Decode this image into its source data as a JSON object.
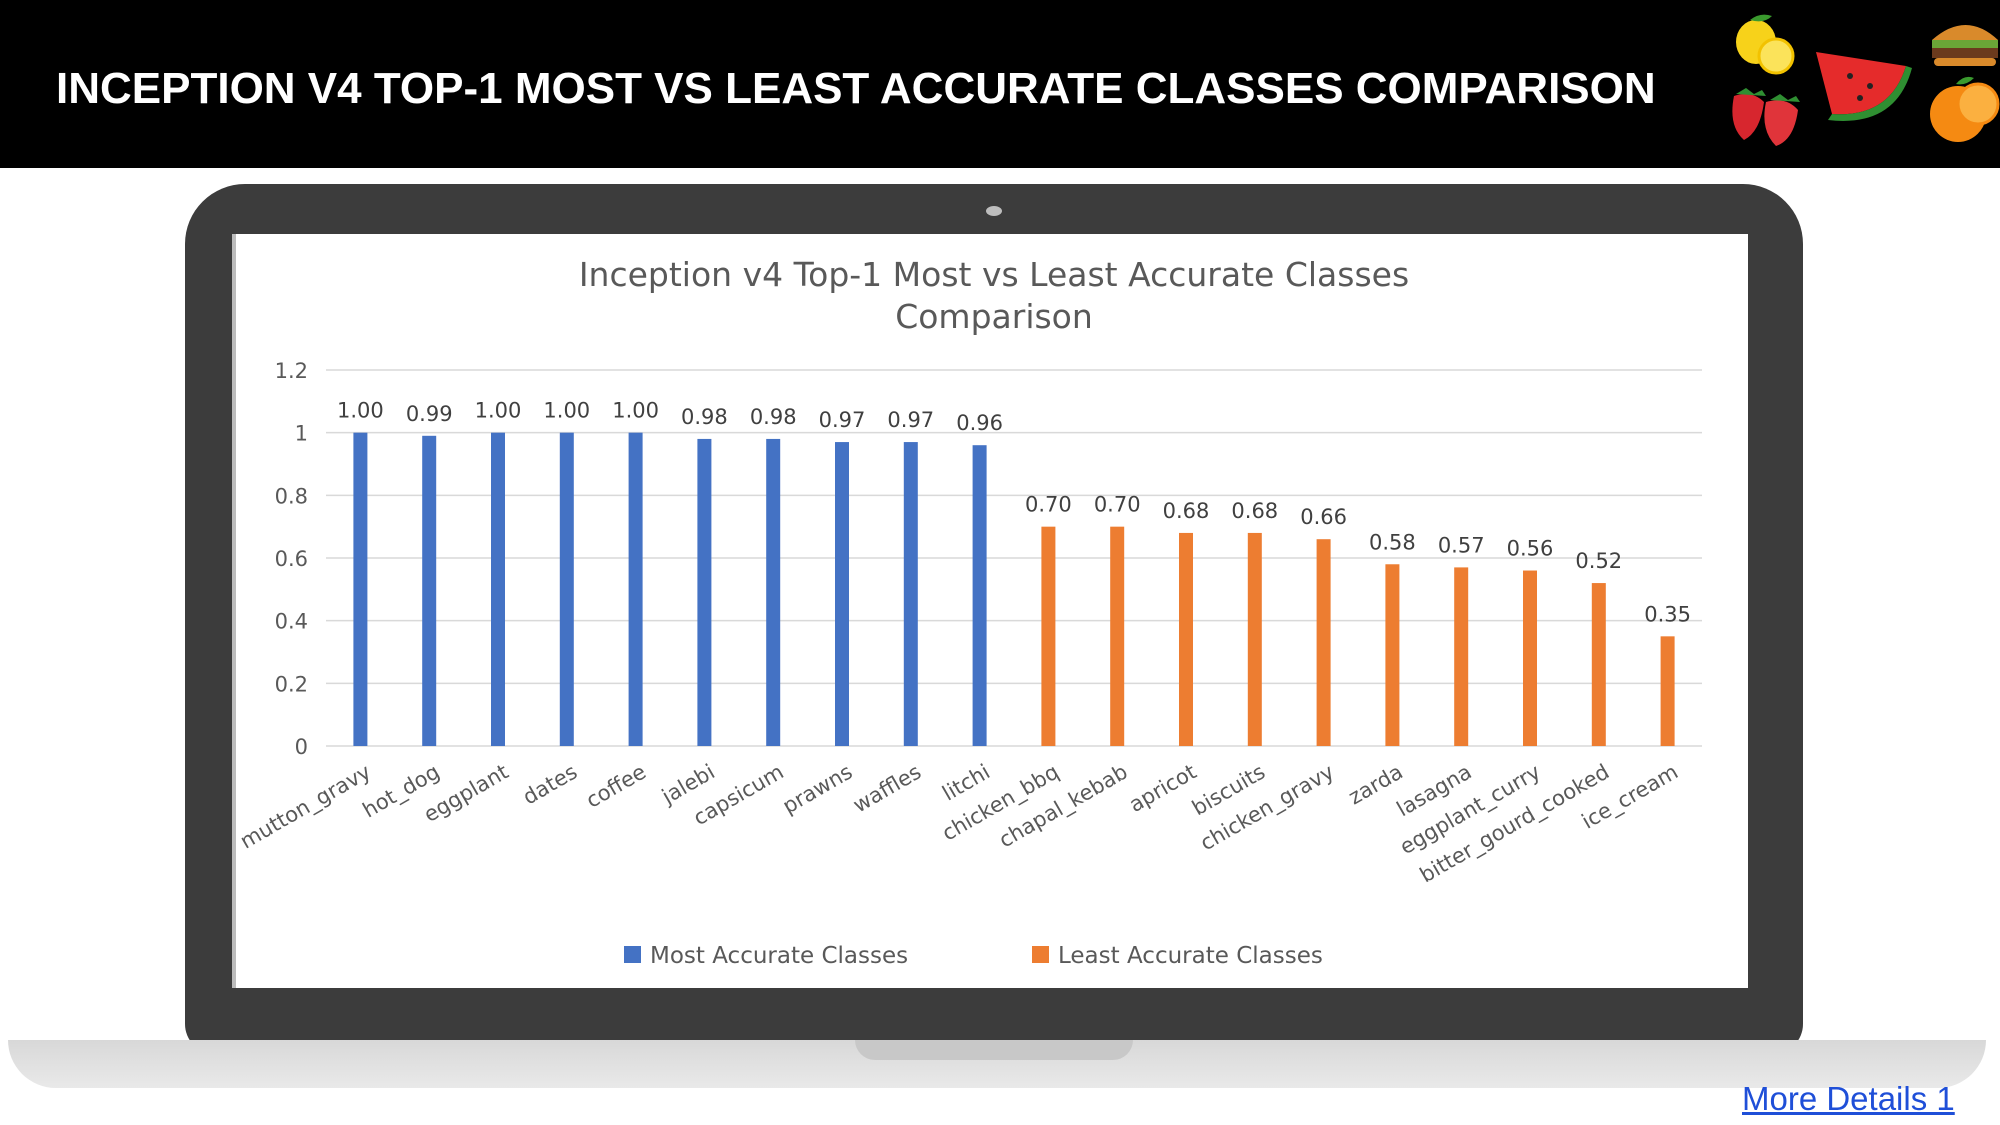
{
  "header": {
    "title": "INCEPTION V4 TOP-1 MOST VS LEAST ACCURATE CLASSES COMPARISON"
  },
  "decorations": {
    "icons": [
      "lemon-icon",
      "watermelon-icon",
      "burger-icon",
      "strawberry-icon",
      "orange-icon"
    ]
  },
  "link": {
    "label": "More Details 1"
  },
  "chart_data": {
    "type": "bar",
    "title_lines": [
      "Inception v4 Top-1 Most vs Least Accurate Classes",
      "Comparison"
    ],
    "categories": [
      "mutton_gravy",
      "hot_dog",
      "eggplant",
      "dates",
      "coffee",
      "jalebi",
      "capsicum",
      "prawns",
      "waffles",
      "litchi",
      "chicken_bbq",
      "chapal_kebab",
      "apricot",
      "biscuits",
      "chicken_gravy",
      "zarda",
      "lasagna",
      "eggplant_curry",
      "bitter_gourd_cooked",
      "ice_cream"
    ],
    "series": [
      {
        "name": "Most Accurate Classes",
        "color": "#4472c4",
        "values": [
          1.0,
          0.99,
          1.0,
          1.0,
          1.0,
          0.98,
          0.98,
          0.97,
          0.97,
          0.96,
          null,
          null,
          null,
          null,
          null,
          null,
          null,
          null,
          null,
          null
        ],
        "labels": [
          "1.00",
          "0.99",
          "1.00",
          "1.00",
          "1.00",
          "0.98",
          "0.98",
          "0.97",
          "0.97",
          "0.96"
        ]
      },
      {
        "name": "Least Accurate Classes",
        "color": "#ed7d31",
        "values": [
          null,
          null,
          null,
          null,
          null,
          null,
          null,
          null,
          null,
          null,
          0.7,
          0.7,
          0.68,
          0.68,
          0.66,
          0.58,
          0.57,
          0.56,
          0.52,
          0.35
        ],
        "labels": [
          "0.70",
          "0.70",
          "0.68",
          "0.68",
          "0.66",
          "0.58",
          "0.57",
          "0.56",
          "0.52",
          "0.35"
        ]
      }
    ],
    "ylim": [
      0,
      1.2
    ],
    "yticks": [
      "0",
      "0.2",
      "0.4",
      "0.6",
      "0.8",
      "1",
      "1.2"
    ],
    "ytick_values": [
      0,
      0.2,
      0.4,
      0.6,
      0.8,
      1.0,
      1.2
    ],
    "grid": true,
    "legend_position": "bottom",
    "xlabel": "",
    "ylabel": ""
  }
}
